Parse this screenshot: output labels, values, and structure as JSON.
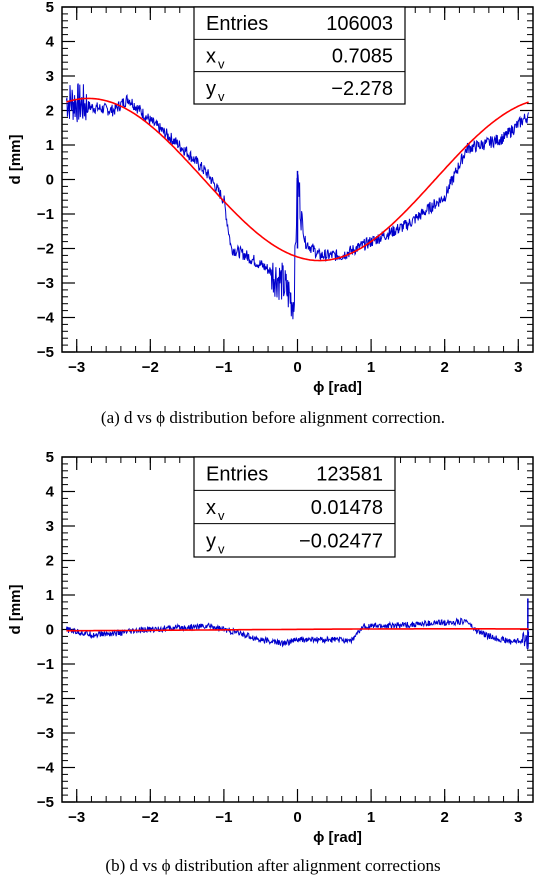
{
  "chart_data": [
    {
      "type": "scatter",
      "xlabel": "ϕ [rad]",
      "ylabel": "d [mm]",
      "xlim": [
        -3.2,
        3.2
      ],
      "ylim": [
        -5,
        5
      ],
      "xticks": [
        "−3",
        "−2",
        "−1",
        "0",
        "1",
        "2",
        "3"
      ],
      "yticks": [
        "5",
        "4",
        "3",
        "2",
        "1",
        "0",
        "−1",
        "−2",
        "−3",
        "−4",
        "−5"
      ],
      "stats": {
        "entries_label": "Entries",
        "entries_value": "106003",
        "xv_label": "x",
        "xv_sub": "v",
        "xv_value": "0.7085",
        "yv_label": "y",
        "yv_sub": "v",
        "yv_value": "−2.278"
      },
      "fit": {
        "type": "sinusoid",
        "amplitude": 2.35,
        "center": 0.3,
        "color": "#ff0000"
      },
      "series": [
        {
          "color": "#0000cc",
          "x": [
            -3.14,
            -2.8,
            -2.5,
            -2.3,
            -2.0,
            -1.5,
            -1.2,
            -1.0,
            -0.9,
            -0.7,
            -0.4,
            -0.2,
            -0.05,
            0.0,
            0.1,
            0.3,
            0.6,
            1.0,
            1.5,
            2.0,
            2.3,
            2.5,
            2.8,
            3.1
          ],
          "y": [
            2.3,
            2.1,
            2.0,
            2.35,
            1.7,
            0.8,
            0.1,
            -0.6,
            -2.0,
            -2.2,
            -2.6,
            -3.0,
            -3.6,
            0.0,
            -1.8,
            -2.2,
            -2.2,
            -1.8,
            -1.3,
            -0.5,
            0.9,
            1.0,
            1.2,
            1.8
          ]
        }
      ],
      "caption": "(a) d vs ϕ distribution before alignment correction."
    },
    {
      "type": "scatter",
      "xlabel": "ϕ [rad]",
      "ylabel": "d [mm]",
      "xlim": [
        -3.2,
        3.2
      ],
      "ylim": [
        -5,
        5
      ],
      "xticks": [
        "−3",
        "−2",
        "−1",
        "0",
        "1",
        "2",
        "3"
      ],
      "yticks": [
        "5",
        "4",
        "3",
        "2",
        "1",
        "0",
        "−1",
        "−2",
        "−3",
        "−4",
        "−5"
      ],
      "stats": {
        "entries_label": "Entries",
        "entries_value": "123581",
        "xv_label": "x",
        "xv_sub": "v",
        "xv_value": "0.01478",
        "yv_label": "y",
        "yv_sub": "v",
        "yv_value": "−0.02477"
      },
      "fit": {
        "type": "sinusoid",
        "amplitude": 0.03,
        "center": 0.5,
        "color": "#ff0000"
      },
      "series": [
        {
          "color": "#0000cc",
          "x": [
            -3.14,
            -2.8,
            -2.4,
            -2.0,
            -1.6,
            -1.2,
            -1.0,
            -0.8,
            -0.5,
            -0.2,
            0.0,
            0.3,
            0.6,
            0.75,
            0.9,
            1.2,
            1.6,
            2.0,
            2.3,
            2.4,
            2.6,
            2.9,
            3.1
          ],
          "y": [
            0.0,
            -0.15,
            -0.1,
            0.0,
            0.05,
            0.1,
            0.0,
            -0.1,
            -0.3,
            -0.4,
            -0.3,
            -0.3,
            -0.3,
            -0.3,
            0.1,
            0.1,
            0.15,
            0.2,
            0.25,
            0.0,
            -0.2,
            -0.35,
            -0.3
          ]
        }
      ],
      "caption": "(b) d vs ϕ distribution after alignment corrections"
    }
  ]
}
